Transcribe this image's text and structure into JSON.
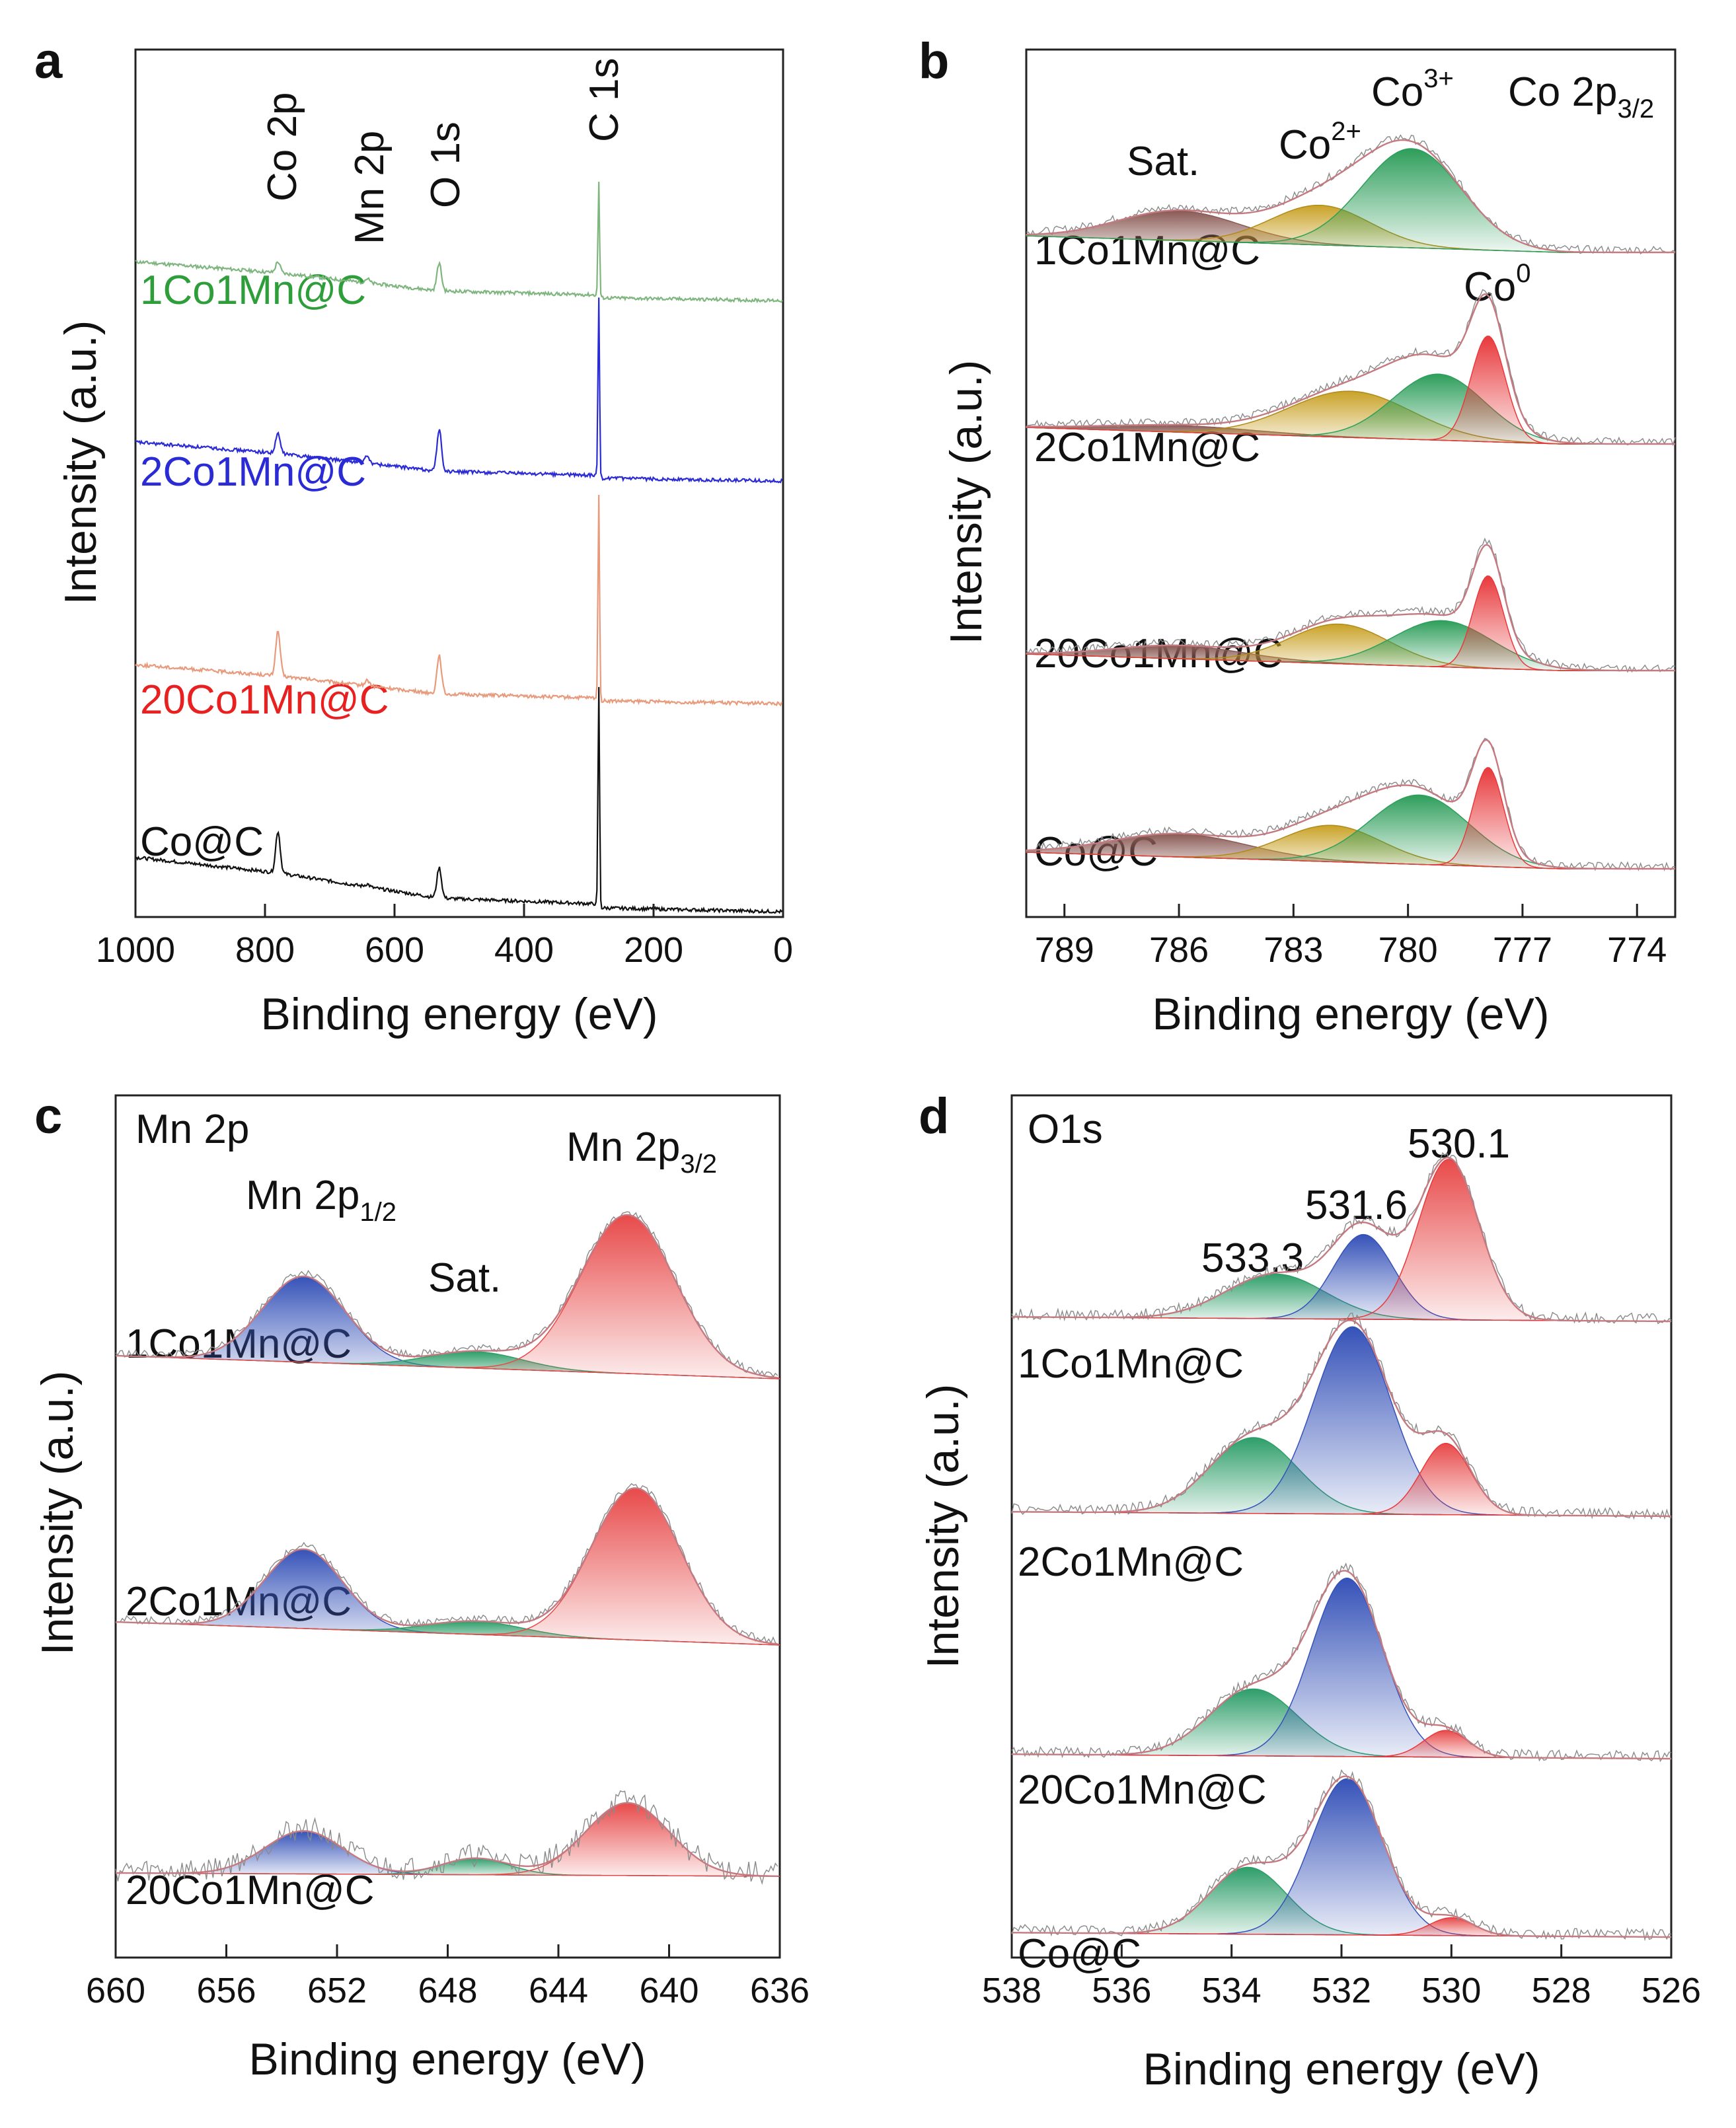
{
  "colors": {
    "co3": "#2e9e5b",
    "co2": "#c9a227",
    "co0": "#e8393c",
    "sat": "#8a5a55",
    "mn_p12": "#3552b8",
    "mn_sat": "#2e9e6a",
    "mn_p32": "#e84a4a",
    "o_533": "#2e9e6a",
    "o_531": "#3552b8",
    "o_530": "#e8393c",
    "envelope": "#c47a80",
    "raw": "#8a8a8a",
    "survey_1co1mn": "#7fb57f",
    "survey_2co1mn": "#2b2bd6",
    "survey_20co1mn": "#e89a7c",
    "survey_co": "#111111"
  },
  "chart_data": [
    {
      "panel": "a",
      "type": "line",
      "title": "",
      "xlabel": "Binding energy (eV)",
      "ylabel": "Intensity (a.u.)",
      "xlim": [
        1000,
        0
      ],
      "x_ticks": [
        "1000",
        "800",
        "600",
        "400",
        "200",
        "0"
      ],
      "peak_labels": [
        "Co 2p",
        "Mn 2p",
        "O 1s",
        "C 1s"
      ],
      "peak_positions_eV": [
        780,
        642,
        531,
        284.6
      ],
      "series": [
        {
          "name": "1Co1Mn@C",
          "offset": 3,
          "peaks": [
            [
              780,
              0.4
            ],
            [
              642,
              0.15
            ],
            [
              531,
              1.0
            ],
            [
              284.6,
              4.2
            ]
          ]
        },
        {
          "name": "2Co1Mn@C",
          "offset": 2,
          "peaks": [
            [
              780,
              0.7
            ],
            [
              642,
              0.25
            ],
            [
              531,
              1.5
            ],
            [
              284.6,
              6.5
            ]
          ]
        },
        {
          "name": "20Co1Mn@C",
          "offset": 1,
          "peaks": [
            [
              780,
              1.6
            ],
            [
              642,
              0.2
            ],
            [
              531,
              1.4
            ],
            [
              284.6,
              7.5
            ]
          ]
        },
        {
          "name": "Co@C",
          "offset": 0,
          "peaks": [
            [
              780,
              1.5
            ],
            [
              642,
              0.1
            ],
            [
              531,
              1.1
            ],
            [
              284.6,
              8.0
            ]
          ]
        }
      ]
    },
    {
      "panel": "b",
      "type": "area",
      "title": "Co 2p3/2",
      "xlabel": "Binding energy (eV)",
      "ylabel": "Intensity (a.u.)",
      "xlim": [
        790,
        773
      ],
      "x_ticks": [
        "789",
        "786",
        "783",
        "780",
        "777",
        "774"
      ],
      "annotations": [
        "Sat.",
        "Co2+",
        "Co3+",
        "Co0"
      ],
      "series": [
        {
          "name": "1Co1Mn@C",
          "components": {
            "Sat.": [
              786.0,
              1.6,
              0.45
            ],
            "Co2+": [
              782.3,
              1.3,
              0.6
            ],
            "Co3+": [
              779.9,
              1.3,
              1.5
            ]
          }
        },
        {
          "name": "2Co1Mn@C",
          "components": {
            "Sat.": [
              786.0,
              2.0,
              0.1
            ],
            "Co2+": [
              781.5,
              1.6,
              0.7
            ],
            "Co3+": [
              779.2,
              1.2,
              1.0
            ],
            "Co0": [
              777.9,
              0.45,
              1.6
            ]
          }
        },
        {
          "name": "20Co1Mn@C",
          "components": {
            "Sat.": [
              786.0,
              1.7,
              0.2
            ],
            "Co2+": [
              781.8,
              1.3,
              0.6
            ],
            "Co3+": [
              779.1,
              1.3,
              0.7
            ],
            "Co0": [
              777.9,
              0.4,
              1.4
            ]
          }
        },
        {
          "name": "Co@C",
          "components": {
            "Sat.": [
              786.0,
              1.8,
              0.35
            ],
            "Co2+": [
              782.0,
              1.3,
              0.55
            ],
            "Co3+": [
              779.7,
              1.3,
              1.05
            ],
            "Co0": [
              777.9,
              0.4,
              1.5
            ]
          }
        }
      ]
    },
    {
      "panel": "c",
      "type": "area",
      "title": "Mn 2p",
      "xlabel": "Binding energy (eV)",
      "ylabel": "Intensity (a.u.)",
      "xlim": [
        660,
        636
      ],
      "x_ticks": [
        "660",
        "656",
        "652",
        "648",
        "644",
        "640",
        "636"
      ],
      "annotations": [
        "Mn 2p1/2",
        "Sat.",
        "Mn 2p3/2"
      ],
      "series": [
        {
          "name": "1Co1Mn@C",
          "components": {
            "Mn 2p1/2": [
              653.2,
              1.5,
              1.3
            ],
            "Sat.": [
              647.0,
              1.7,
              0.25
            ],
            "Mn 2p3/2": [
              641.5,
              1.7,
              2.4
            ]
          }
        },
        {
          "name": "2Co1Mn@C",
          "components": {
            "Mn 2p1/2": [
              653.2,
              1.4,
              1.2
            ],
            "Sat.": [
              647.0,
              1.7,
              0.2
            ],
            "Mn 2p3/2": [
              641.2,
              1.6,
              2.3
            ]
          }
        },
        {
          "name": "20Co1Mn@C",
          "components": {
            "Mn 2p1/2": [
              653.2,
              1.4,
              0.65
            ],
            "Sat.": [
              647.0,
              1.2,
              0.25
            ],
            "Mn 2p3/2": [
              641.5,
              1.5,
              1.1
            ]
          }
        }
      ]
    },
    {
      "panel": "d",
      "type": "area",
      "title": "O1s",
      "xlabel": "Binding energy (eV)",
      "ylabel": "Intensity (a.u.)",
      "xlim": [
        538,
        526
      ],
      "x_ticks": [
        "538",
        "536",
        "534",
        "532",
        "530",
        "528",
        "526"
      ],
      "annotations": [
        "533.3",
        "531.6",
        "530.1"
      ],
      "series": [
        {
          "name": "1Co1Mn@C",
          "components": {
            "533.3": [
              533.2,
              0.9,
              0.5
            ],
            "531.6": [
              531.6,
              0.55,
              0.95
            ],
            "530.1": [
              530.05,
              0.55,
              1.8
            ]
          }
        },
        {
          "name": "2Co1Mn@C",
          "components": {
            "533.3": [
              533.6,
              0.8,
              0.85
            ],
            "531.6": [
              531.8,
              0.7,
              2.1
            ],
            "530.1": [
              530.1,
              0.45,
              0.8
            ]
          }
        },
        {
          "name": "20Co1Mn@C",
          "components": {
            "533.3": [
              533.6,
              0.8,
              0.75
            ],
            "531.6": [
              531.9,
              0.65,
              2.0
            ],
            "530.1": [
              530.1,
              0.4,
              0.3
            ]
          }
        },
        {
          "name": "Co@C",
          "components": {
            "533.3": [
              533.7,
              0.7,
              0.75
            ],
            "531.6": [
              531.9,
              0.65,
              1.75
            ],
            "530.1": [
              530.0,
              0.4,
              0.2
            ]
          }
        }
      ]
    }
  ],
  "text": {
    "panel_a": "a",
    "panel_b": "b",
    "panel_c": "c",
    "panel_d": "d",
    "xlabel": "Binding energy (eV)",
    "ylabel": "Intensity (a.u.)",
    "a_co2p": "Co 2p",
    "a_mn2p": "Mn 2p",
    "a_o1s": "O 1s",
    "a_c1s": "C 1s",
    "s_1co1mn": "1Co1Mn@C",
    "s_2co1mn": "2Co1Mn@C",
    "s_20co1mn": "20Co1Mn@C",
    "s_co": "Co@C",
    "b_sat": "Sat.",
    "b_co": "Co",
    "b_co2_sup": "2+",
    "b_co3_sup": "3+",
    "b_co0_sup": "0",
    "b_title": "Co 2p",
    "b_title_sub": "3/2",
    "c_title": "Mn 2p",
    "c_mn": "Mn 2p",
    "c_sub12": "1/2",
    "c_sub32": "3/2",
    "c_sat": "Sat.",
    "d_title": "O1s",
    "d_533": "533.3",
    "d_531": "531.6",
    "d_530": "530.1"
  }
}
